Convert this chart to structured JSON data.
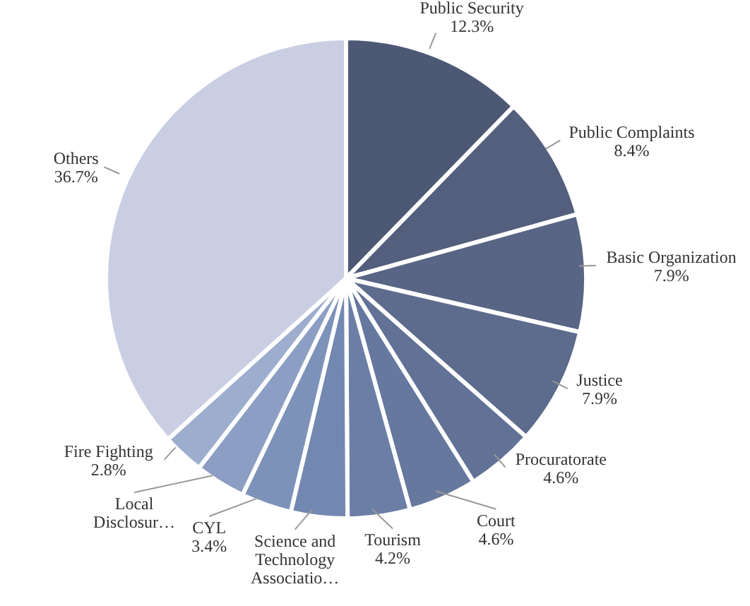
{
  "chart_data": {
    "type": "pie",
    "categories": [
      "Public Security",
      "Public Complaints",
      "Basic Organization",
      "Justice",
      "Procuratorate",
      "Court",
      "Tourism",
      "Science and Technology Associatio…",
      "CYL",
      "Local Disclosur…",
      "Fire Fighting",
      "Others"
    ],
    "values": [
      12.3,
      8.4,
      7.9,
      7.9,
      4.6,
      4.6,
      4.2,
      3.8,
      3.4,
      3.4,
      2.8,
      36.7
    ],
    "value_labels": [
      "12.3%",
      "8.4%",
      "7.9%",
      "7.9%",
      "4.6%",
      "4.6%",
      "4.2%",
      null,
      "3.4%",
      null,
      "2.8%",
      "36.7%"
    ],
    "colors": [
      "#4d5875",
      "#535f7d",
      "#586585",
      "#5d6b8d",
      "#627296",
      "#66789e",
      "#6b7fa6",
      "#7388b0",
      "#7d92b9",
      "#8c9ec3",
      "#9dadcd",
      "#c9cee2"
    ]
  }
}
